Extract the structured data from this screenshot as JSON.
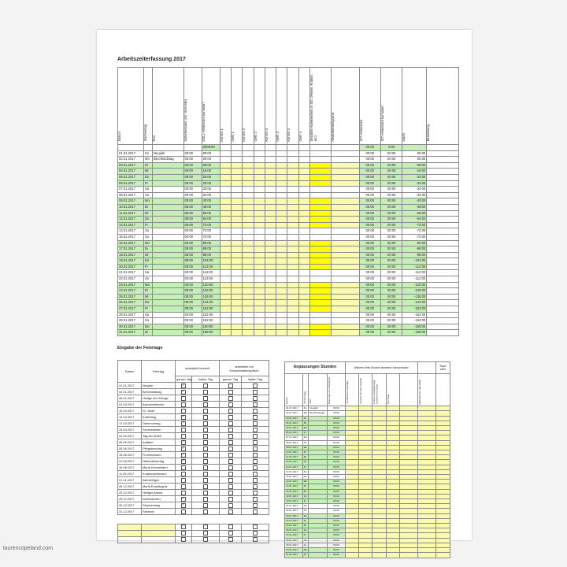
{
  "title": "Arbeitszeiterfassung  2017",
  "columns": [
    "Datum",
    "Wochentag",
    "Text",
    "Sollarbeitszeit (mit Vorrunde)",
    "SOLL-Arbeitszeit kumuliert",
    "Kommt 1",
    "Geht 1",
    "Kommt 2",
    "Geht 2",
    "Kommt 3",
    "Geht 3",
    "Kommt 4",
    "Geht 4",
    "bezahlte Abwesenheit in Std. (Ferien, Krankh. etc)",
    "Abwesenheitsgrund",
    "IST-Arbeitszeit",
    "IST-Arbeitszeit kumuliert",
    "Saldo",
    "Bemerkung"
  ],
  "summary": {
    "soll_total": "2008:00",
    "ist": "00:00",
    "ist_kum": "0:00"
  },
  "rows": [
    {
      "d": "01.01.2017",
      "w": "So",
      "t": "Neujahr",
      "s": "00:00",
      "k": "00:00",
      "i": "00:00",
      "ik": "00:00",
      "sa": "00:00",
      "c": "w",
      "ab": ""
    },
    {
      "d": "02.01.2017",
      "w": "Mo",
      "t": "Berchtoldstag",
      "s": "00:00",
      "k": "00:00",
      "i": "00:00",
      "ik": "00:00",
      "sa": "00:00",
      "c": "w",
      "ab": ""
    },
    {
      "d": "03.01.2017",
      "w": "Di",
      "t": "",
      "s": "08:00",
      "k": "08:00",
      "i": "00:00",
      "ik": "00:00",
      "sa": "-08:00",
      "c": "g",
      "ab": "y"
    },
    {
      "d": "04.01.2017",
      "w": "Mi",
      "t": "",
      "s": "08:00",
      "k": "16:00",
      "i": "00:00",
      "ik": "00:00",
      "sa": "-16:00",
      "c": "g",
      "ab": "y"
    },
    {
      "d": "05.01.2017",
      "w": "Do",
      "t": "",
      "s": "08:00",
      "k": "24:00",
      "i": "00:00",
      "ik": "00:00",
      "sa": "-24:00",
      "c": "g",
      "ab": "y"
    },
    {
      "d": "06.01.2017",
      "w": "Fr",
      "t": "",
      "s": "08:00",
      "k": "32:00",
      "i": "00:00",
      "ik": "00:00",
      "sa": "-32:00",
      "c": "g",
      "ab": "y"
    },
    {
      "d": "07.01.2017",
      "w": "Sa",
      "t": "",
      "s": "00:00",
      "k": "32:00",
      "i": "00:00",
      "ik": "00:00",
      "sa": "-32:00",
      "c": "w",
      "ab": ""
    },
    {
      "d": "08.01.2017",
      "w": "So",
      "t": "",
      "s": "00:00",
      "k": "32:00",
      "i": "00:00",
      "ik": "00:00",
      "sa": "-32:00",
      "c": "w",
      "ab": ""
    },
    {
      "d": "09.01.2017",
      "w": "Mo",
      "t": "",
      "s": "08:00",
      "k": "40:00",
      "i": "00:00",
      "ik": "00:00",
      "sa": "-40:00",
      "c": "g",
      "ab": "y"
    },
    {
      "d": "10.01.2017",
      "w": "Di",
      "t": "",
      "s": "08:00",
      "k": "48:00",
      "i": "00:00",
      "ik": "00:00",
      "sa": "-48:00",
      "c": "g",
      "ab": "y"
    },
    {
      "d": "11.01.2017",
      "w": "Mi",
      "t": "",
      "s": "08:00",
      "k": "56:00",
      "i": "00:00",
      "ik": "00:00",
      "sa": "-56:00",
      "c": "g",
      "ab": "y"
    },
    {
      "d": "12.01.2017",
      "w": "Do",
      "t": "",
      "s": "08:00",
      "k": "64:00",
      "i": "00:00",
      "ik": "00:00",
      "sa": "-64:00",
      "c": "g",
      "ab": "y"
    },
    {
      "d": "13.01.2017",
      "w": "Fr",
      "t": "",
      "s": "08:00",
      "k": "72:00",
      "i": "00:00",
      "ik": "00:00",
      "sa": "-72:00",
      "c": "g",
      "ab": "y"
    },
    {
      "d": "14.01.2017",
      "w": "Sa",
      "t": "",
      "s": "00:00",
      "k": "72:00",
      "i": "00:00",
      "ik": "00:00",
      "sa": "-72:00",
      "c": "w",
      "ab": ""
    },
    {
      "d": "15.01.2017",
      "w": "So",
      "t": "",
      "s": "00:00",
      "k": "72:00",
      "i": "00:00",
      "ik": "00:00",
      "sa": "-72:00",
      "c": "w",
      "ab": ""
    },
    {
      "d": "16.01.2017",
      "w": "Mo",
      "t": "",
      "s": "08:00",
      "k": "80:00",
      "i": "00:00",
      "ik": "00:00",
      "sa": "-80:00",
      "c": "g",
      "ab": "y"
    },
    {
      "d": "17.01.2017",
      "w": "Di",
      "t": "",
      "s": "08:00",
      "k": "88:00",
      "i": "00:00",
      "ik": "00:00",
      "sa": "-88:00",
      "c": "g",
      "ab": "y"
    },
    {
      "d": "18.01.2017",
      "w": "Mi",
      "t": "",
      "s": "08:00",
      "k": "96:00",
      "i": "00:00",
      "ik": "00:00",
      "sa": "-96:00",
      "c": "g",
      "ab": "y"
    },
    {
      "d": "19.01.2017",
      "w": "Do",
      "t": "",
      "s": "08:00",
      "k": "104:00",
      "i": "00:00",
      "ik": "00:00",
      "sa": "-104:00",
      "c": "g",
      "ab": "y"
    },
    {
      "d": "20.01.2017",
      "w": "Fr",
      "t": "",
      "s": "08:00",
      "k": "112:00",
      "i": "00:00",
      "ik": "00:00",
      "sa": "-112:00",
      "c": "g",
      "ab": "y"
    },
    {
      "d": "21.01.2017",
      "w": "Sa",
      "t": "",
      "s": "00:00",
      "k": "112:00",
      "i": "00:00",
      "ik": "00:00",
      "sa": "-112:00",
      "c": "w",
      "ab": ""
    },
    {
      "d": "22.01.2017",
      "w": "So",
      "t": "",
      "s": "00:00",
      "k": "112:00",
      "i": "00:00",
      "ik": "00:00",
      "sa": "-112:00",
      "c": "w",
      "ab": ""
    },
    {
      "d": "23.01.2017",
      "w": "Mo",
      "t": "",
      "s": "08:00",
      "k": "120:00",
      "i": "00:00",
      "ik": "00:00",
      "sa": "-120:00",
      "c": "g",
      "ab": "y"
    },
    {
      "d": "24.01.2017",
      "w": "Di",
      "t": "",
      "s": "08:00",
      "k": "128:00",
      "i": "00:00",
      "ik": "00:00",
      "sa": "-128:00",
      "c": "g",
      "ab": "y"
    },
    {
      "d": "25.01.2017",
      "w": "Mi",
      "t": "",
      "s": "08:00",
      "k": "136:00",
      "i": "00:00",
      "ik": "00:00",
      "sa": "-136:00",
      "c": "g",
      "ab": "y"
    },
    {
      "d": "26.01.2017",
      "w": "Do",
      "t": "",
      "s": "08:00",
      "k": "144:00",
      "i": "00:00",
      "ik": "00:00",
      "sa": "-144:00",
      "c": "g",
      "ab": "y"
    },
    {
      "d": "27.01.2017",
      "w": "Fr",
      "t": "",
      "s": "08:00",
      "k": "152:00",
      "i": "00:00",
      "ik": "00:00",
      "sa": "-152:00",
      "c": "g",
      "ab": "y"
    },
    {
      "d": "28.01.2017",
      "w": "Sa",
      "t": "",
      "s": "00:00",
      "k": "152:00",
      "i": "00:00",
      "ik": "00:00",
      "sa": "-152:00",
      "c": "w",
      "ab": ""
    },
    {
      "d": "29.01.2017",
      "w": "So",
      "t": "",
      "s": "00:00",
      "k": "152:00",
      "i": "00:00",
      "ik": "00:00",
      "sa": "-152:00",
      "c": "w",
      "ab": ""
    },
    {
      "d": "30.01.2017",
      "w": "Mo",
      "t": "",
      "s": "08:00",
      "k": "160:00",
      "i": "00:00",
      "ik": "00:00",
      "sa": "-160:00",
      "c": "g",
      "ab": "y"
    },
    {
      "d": "31.01.2017",
      "w": "Di",
      "t": "",
      "s": "08:00",
      "k": "168:00",
      "i": "00:00",
      "ik": "00:00",
      "sa": "-168:00",
      "c": "g",
      "ab": "y"
    }
  ],
  "holidays_title": "Eingabe der Feiertage",
  "holidays_header": {
    "datum": "Datum",
    "feiertag": "Feiertag",
    "group1": "arbeitsfrei bezahlt",
    "group2": "arbeitsfrei mit Kompensationspflicht",
    "ganz": "ganzer Tag",
    "halb": "halber Tag"
  },
  "holidays": [
    {
      "d": "01.01.2017",
      "n": "Neujahr",
      "c": [
        1,
        0,
        0,
        0
      ]
    },
    {
      "d": "02.01.2017",
      "n": "Berchtoldstag",
      "c": [
        1,
        0,
        0,
        0
      ]
    },
    {
      "d": "06.01.2017",
      "n": "Heilige drei Könige",
      "c": [
        0,
        0,
        0,
        0
      ]
    },
    {
      "d": "01.03.2017",
      "n": "Aschermittwoch",
      "c": [
        0,
        0,
        0,
        0
      ]
    },
    {
      "d": "19.03.2017",
      "n": "St. Josef",
      "c": [
        0,
        0,
        0,
        0
      ]
    },
    {
      "d": "14.04.2017",
      "n": "Karfreitag",
      "c": [
        1,
        0,
        0,
        0
      ]
    },
    {
      "d": "17.04.2017",
      "n": "Ostermontag",
      "c": [
        1,
        0,
        0,
        0
      ]
    },
    {
      "d": "24.04.2017",
      "n": "Sechseläuten",
      "c": [
        0,
        0,
        0,
        0
      ]
    },
    {
      "d": "01.05.2017",
      "n": "Tag der Arbeit",
      "c": [
        0,
        0,
        0,
        0
      ]
    },
    {
      "d": "25.05.2017",
      "n": "Auffahrt",
      "c": [
        1,
        0,
        0,
        0
      ]
    },
    {
      "d": "05.06.2017",
      "n": "Pfingstmontag",
      "c": [
        1,
        0,
        0,
        0
      ]
    },
    {
      "d": "15.06.2017",
      "n": "Fronleichnam",
      "c": [
        1,
        0,
        0,
        0
      ]
    },
    {
      "d": "01.08.2017",
      "n": "Nationalfeiertag",
      "c": [
        1,
        0,
        0,
        0
      ]
    },
    {
      "d": "15.08.2017",
      "n": "Mariä Himmelfahrt",
      "c": [
        0,
        0,
        0,
        0
      ]
    },
    {
      "d": "11.09.2017",
      "n": "Knabenschiessen",
      "c": [
        0,
        0,
        0,
        0
      ]
    },
    {
      "d": "01.11.2017",
      "n": "Allerheiligen",
      "c": [
        0,
        0,
        0,
        0
      ]
    },
    {
      "d": "08.12.2017",
      "n": "Mariä Empfängnis",
      "c": [
        0,
        0,
        0,
        0
      ]
    },
    {
      "d": "24.12.2017",
      "n": "Heiliger Abend",
      "c": [
        0,
        0,
        0,
        0
      ]
    },
    {
      "d": "25.12.2017",
      "n": "Weihnachten",
      "c": [
        1,
        0,
        0,
        0
      ]
    },
    {
      "d": "26.12.2017",
      "n": "Stephanstag",
      "c": [
        1,
        0,
        0,
        0
      ]
    },
    {
      "d": "31.12.2017",
      "n": "Silvester",
      "c": [
        0,
        0,
        0,
        0
      ]
    }
  ],
  "adjust": {
    "title": "Anpassungen Stunden",
    "group": "Welchen Seite Stunden abwarten/ Kompensation",
    "saldo_header": "Saldo zählt",
    "cols": [
      "Datum",
      "Wochentag",
      "Text",
      "Änderung von Arbeitszeit",
      "Zusätzliche Feiertage",
      "Anzahl Stunden bezahlt",
      "Positive (Auszahlung) Stunden mit Saldo",
      "Bei Total",
      "Maßnahmen dazuzählt"
    ]
  },
  "watermark": "laurencopeland.com"
}
